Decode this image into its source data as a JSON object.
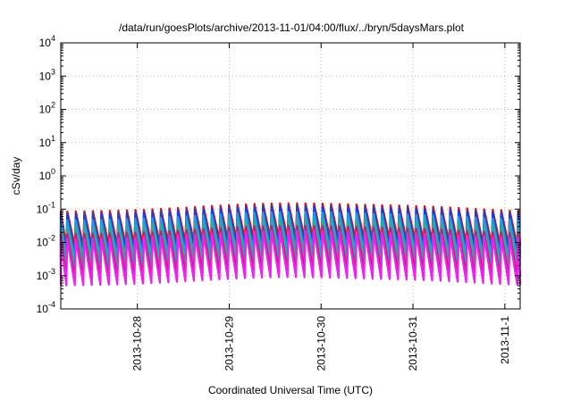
{
  "chart_data": {
    "type": "line",
    "title": "/data/run/goesPlots/archive/2013-11-01/04:00/flux/../bryn/5daysMars.plot",
    "xlabel": "Coordinated Universal Time (UTC)",
    "ylabel": "cSv/day",
    "yscale": "log",
    "ylim": [
      0.0001,
      10000
    ],
    "xlim": [
      "2013-10-27 04:00",
      "2013-11-01 04:00"
    ],
    "y_ticks": [
      {
        "base": "10",
        "exp": "-4",
        "value": 0.0001
      },
      {
        "base": "10",
        "exp": "-3",
        "value": 0.001
      },
      {
        "base": "10",
        "exp": "-2",
        "value": 0.01
      },
      {
        "base": "10",
        "exp": "-1",
        "value": 0.1
      },
      {
        "base": "10",
        "exp": "0",
        "value": 1
      },
      {
        "base": "10",
        "exp": "1",
        "value": 10
      },
      {
        "base": "10",
        "exp": "2",
        "value": 100
      },
      {
        "base": "10",
        "exp": "3",
        "value": 1000
      },
      {
        "base": "10",
        "exp": "4",
        "value": 10000
      }
    ],
    "x_ticks": [
      {
        "label": "2013-10-28",
        "value": "2013-10-28 00:00"
      },
      {
        "label": "2013-10-29",
        "value": "2013-10-29 00:00"
      },
      {
        "label": "2013-10-30",
        "value": "2013-10-30 00:00"
      },
      {
        "label": "2013-10-31",
        "value": "2013-10-31 00:00"
      },
      {
        "label": "2013-11-1",
        "value": "2013-11-01 00:00"
      }
    ],
    "grid": true,
    "pattern": "sawtooth, about 11 cycles per day",
    "series": [
      {
        "color": "#e01010",
        "peak": 0.12,
        "trough": 0.012
      },
      {
        "color": "#1a3fd6",
        "peak": 0.1,
        "trough": 0.007
      },
      {
        "color": "#1a9fe0",
        "peak": 0.065,
        "trough": 0.005
      },
      {
        "color": "#30a8a0",
        "peak": 0.04,
        "trough": 0.003
      },
      {
        "color": "#c02070",
        "peak": 0.025,
        "trough": 0.0014
      },
      {
        "color": "#ee22ee",
        "peak": 0.018,
        "trough": 0.0008
      }
    ]
  }
}
